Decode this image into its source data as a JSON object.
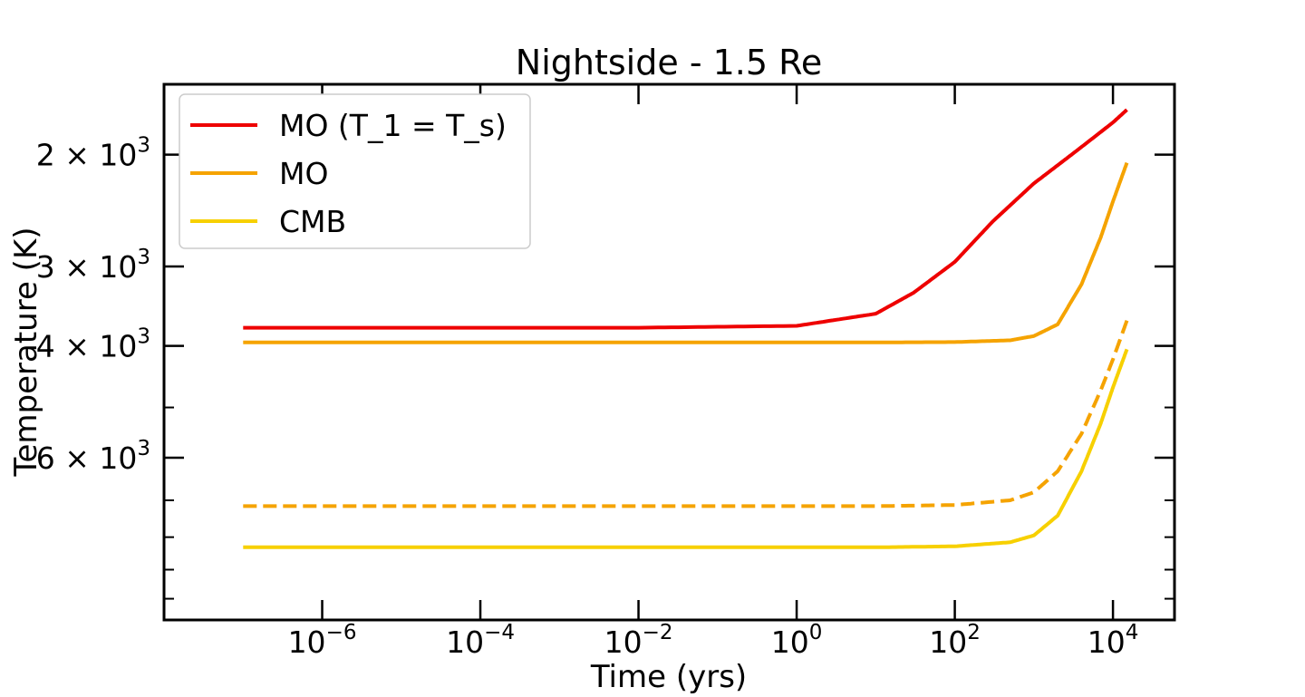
{
  "chart_data": {
    "type": "line",
    "title": "Nightside - 1.5 Re",
    "xlabel": "Time (yrs)",
    "ylabel": "Temperature (K)",
    "x_scale": "log",
    "y_scale": "log",
    "y_inverted": true,
    "xlim": [
      1e-08,
      60000
    ],
    "ylim": [
      10800,
      1550
    ],
    "x_ticks": [
      {
        "value": 1e-06,
        "base": "10",
        "exp": "−6"
      },
      {
        "value": 0.0001,
        "base": "10",
        "exp": "−4"
      },
      {
        "value": 0.01,
        "base": "10",
        "exp": "−2"
      },
      {
        "value": 1,
        "base": "10",
        "exp": "0"
      },
      {
        "value": 100,
        "base": "10",
        "exp": "2"
      },
      {
        "value": 10000,
        "base": "10",
        "exp": "4"
      }
    ],
    "y_ticks": [
      {
        "value": 2000,
        "mant": "2 × 10",
        "exp": "3"
      },
      {
        "value": 3000,
        "mant": "3 × 10",
        "exp": "3"
      },
      {
        "value": 4000,
        "mant": "4 × 10",
        "exp": "3"
      },
      {
        "value": 6000,
        "mant": "6 × 10",
        "exp": "3"
      }
    ],
    "y_minor_ticks": [
      5000,
      7000,
      8000,
      9000,
      10000
    ],
    "grid": false,
    "legend": {
      "placement": "top-left"
    },
    "series": [
      {
        "name": "MO (T_1 = T_s)",
        "color": "#ee0000",
        "style": "solid",
        "in_legend": true,
        "points": [
          [
            1e-07,
            3745
          ],
          [
            0.01,
            3745
          ],
          [
            1,
            3720
          ],
          [
            10,
            3560
          ],
          [
            30,
            3300
          ],
          [
            100,
            2950
          ],
          [
            300,
            2550
          ],
          [
            1000,
            2220
          ],
          [
            3000,
            2000
          ],
          [
            10000,
            1780
          ],
          [
            15000,
            1700
          ]
        ]
      },
      {
        "name": "MO",
        "color": "#f5a300",
        "style": "solid",
        "in_legend": true,
        "points": [
          [
            1e-07,
            3950
          ],
          [
            10,
            3950
          ],
          [
            100,
            3945
          ],
          [
            500,
            3920
          ],
          [
            1000,
            3860
          ],
          [
            2000,
            3700
          ],
          [
            4000,
            3200
          ],
          [
            7000,
            2700
          ],
          [
            10000,
            2370
          ],
          [
            15000,
            2060
          ]
        ]
      },
      {
        "name": "",
        "color": "#f5a300",
        "style": "dashed",
        "in_legend": false,
        "points": [
          [
            1e-07,
            7150
          ],
          [
            10,
            7150
          ],
          [
            100,
            7120
          ],
          [
            500,
            7000
          ],
          [
            1000,
            6800
          ],
          [
            2000,
            6300
          ],
          [
            4000,
            5500
          ],
          [
            7000,
            4700
          ],
          [
            10000,
            4200
          ],
          [
            15000,
            3650
          ]
        ]
      },
      {
        "name": "CMB",
        "color": "#f7d000",
        "style": "solid",
        "in_legend": true,
        "points": [
          [
            1e-07,
            8300
          ],
          [
            10,
            8300
          ],
          [
            100,
            8270
          ],
          [
            500,
            8150
          ],
          [
            1000,
            7950
          ],
          [
            2000,
            7400
          ],
          [
            4000,
            6300
          ],
          [
            7000,
            5300
          ],
          [
            10000,
            4650
          ],
          [
            15000,
            4050
          ]
        ]
      }
    ]
  }
}
